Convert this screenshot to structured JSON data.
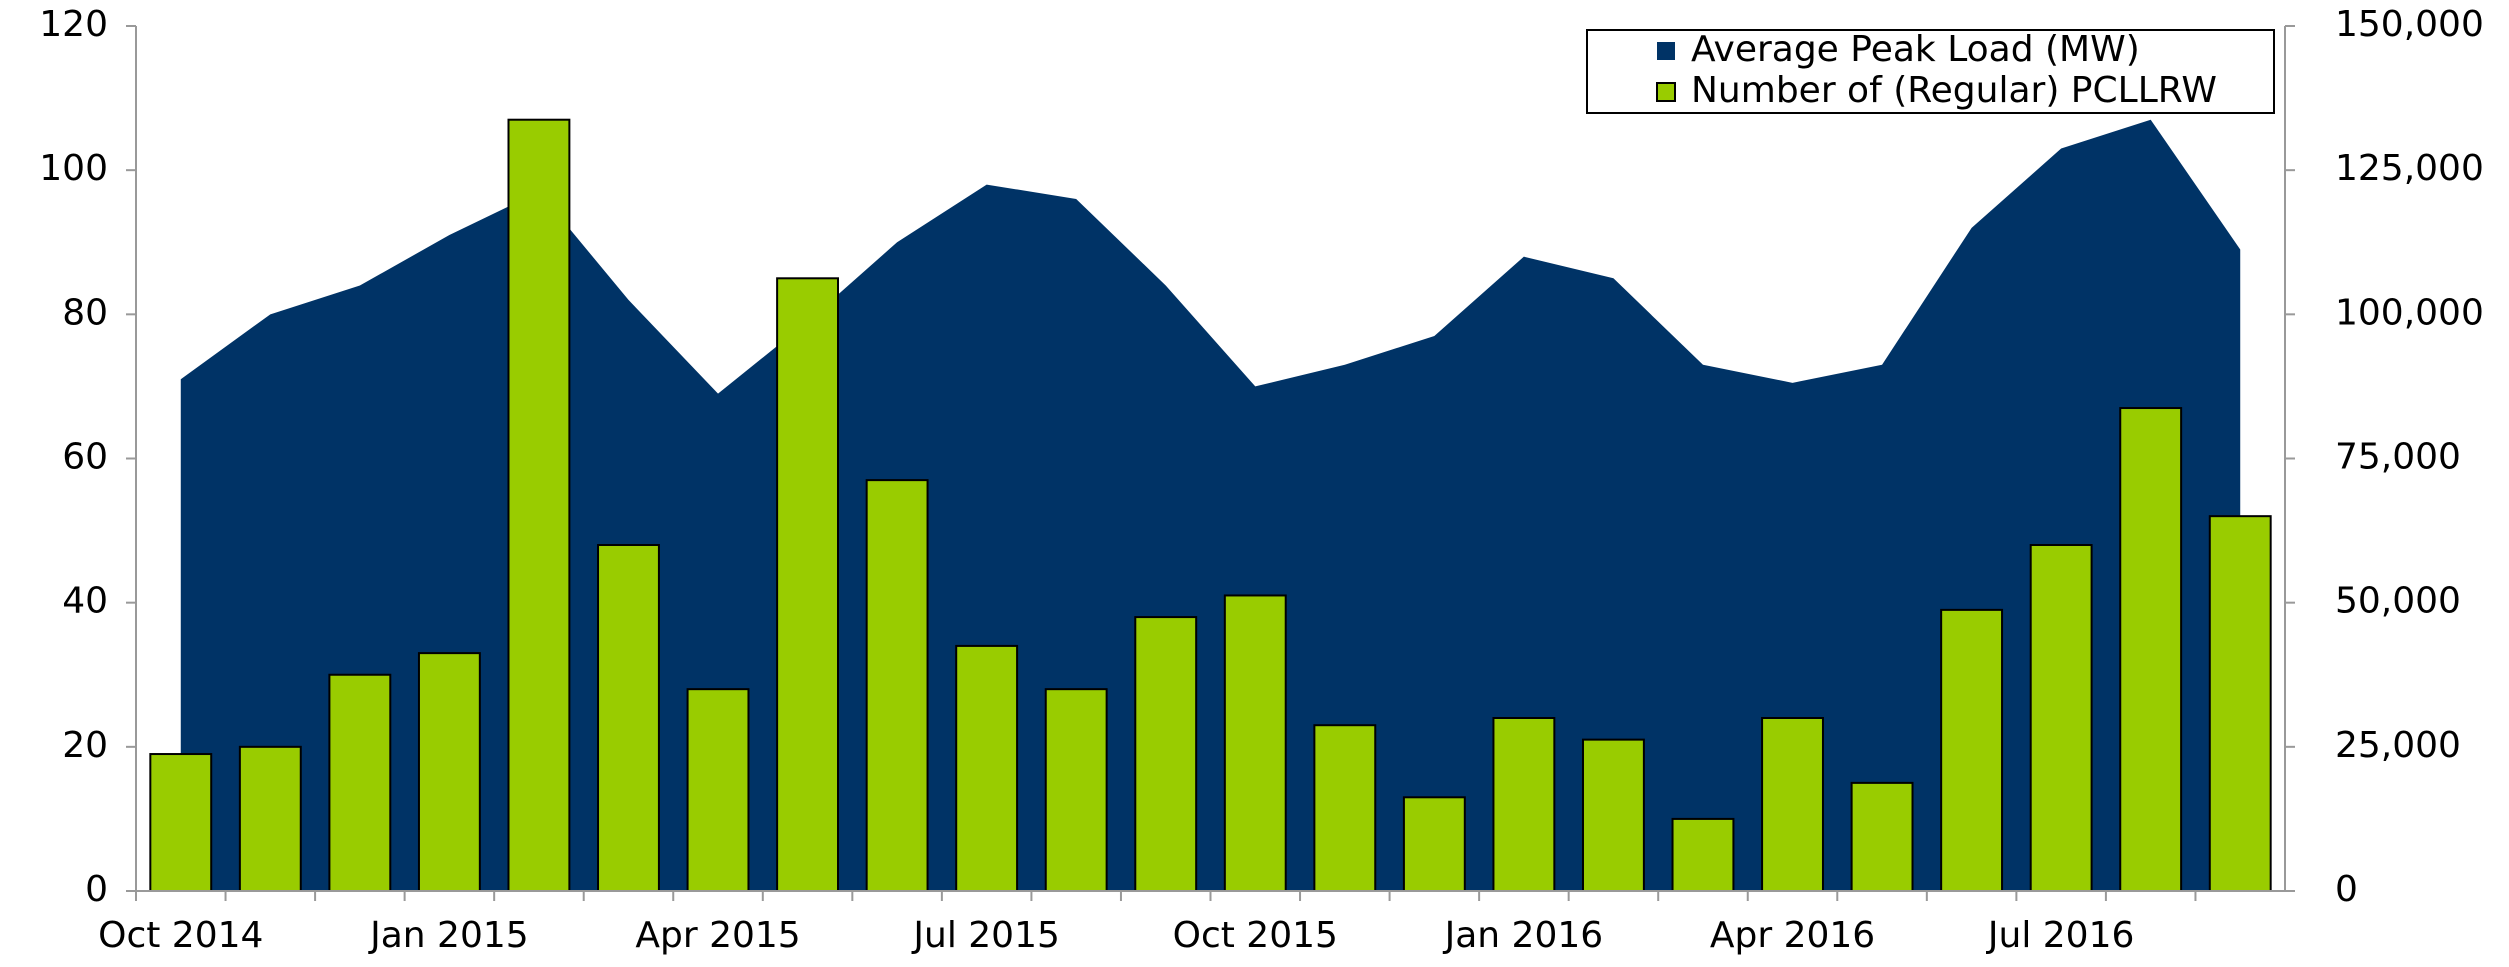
{
  "chart_data": {
    "type": "bar",
    "categories": [
      "Oct 2014",
      null,
      null,
      "Jan 2015",
      null,
      null,
      "Apr 2015",
      null,
      null,
      "Jul 2015",
      null,
      null,
      "Oct 2015",
      null,
      null,
      "Jan 2016",
      null,
      null,
      "Apr 2016",
      null,
      null,
      "Jul 2016",
      null,
      null
    ],
    "series": [
      {
        "name": "Average Peak Load (MW)",
        "type": "area",
        "color": "#003366",
        "axis": "y",
        "values": [
          71,
          80,
          84,
          91,
          97,
          82,
          69,
          79,
          90,
          98,
          96,
          84,
          70,
          73,
          77,
          88,
          85,
          73,
          70.5,
          73,
          92,
          103,
          107,
          89
        ]
      },
      {
        "name": "Number of (Regular) PCLLRW",
        "type": "bar",
        "color": "#99cc00",
        "axis": "y2",
        "values": [
          23750,
          25000,
          37500,
          41250,
          133750,
          60000,
          35000,
          106250,
          71250,
          42500,
          35000,
          47500,
          51250,
          28750,
          16250,
          30000,
          26250,
          12500,
          30000,
          18750,
          48750,
          60000,
          83750,
          65000
        ]
      }
    ],
    "ylim": [
      0,
      120
    ],
    "yticks": [
      0,
      20,
      40,
      60,
      80,
      100,
      120
    ],
    "y2lim": [
      0,
      150000
    ],
    "y2ticks": [
      0,
      {
        "value": 25000,
        "label": "25,000"
      },
      {
        "value": 50000,
        "label": "50,000"
      },
      {
        "value": 75000,
        "label": "75,000"
      },
      {
        "value": 100000,
        "label": "100,000"
      },
      {
        "value": 125000,
        "label": "125,000"
      },
      {
        "value": 150000,
        "label": "150,000"
      }
    ],
    "legend": "top-right",
    "grid": false
  }
}
